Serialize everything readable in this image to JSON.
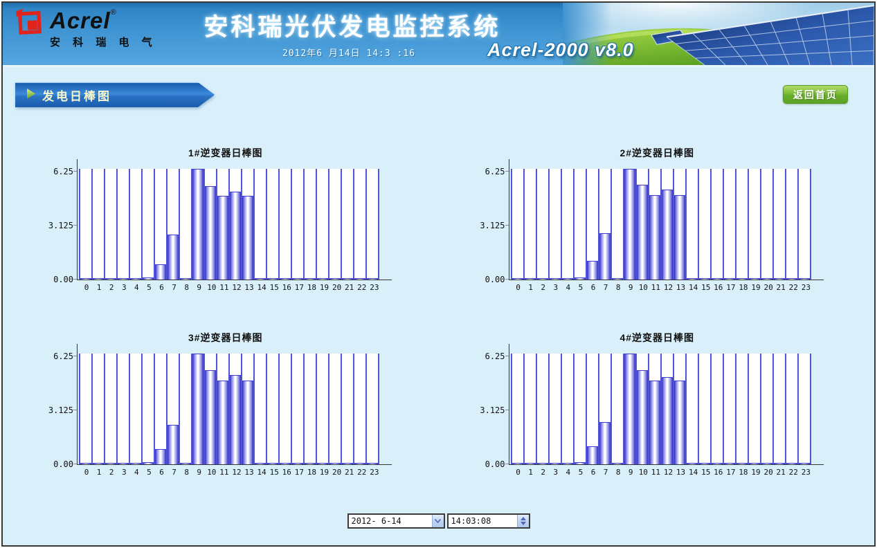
{
  "header": {
    "logo": {
      "brand": "Acrel",
      "registered": "®",
      "subtitle": "安 科 瑞 电 气"
    },
    "title": "安科瑞光伏发电监控系统",
    "datetime": "2012年6 月14日 14:3 :16",
    "version": "Acrel-2000 v8.0"
  },
  "toolbar": {
    "breadcrumb": "发电日棒图",
    "home_button_label": "返回首页"
  },
  "chart_data": [
    {
      "type": "bar",
      "title": "1#逆变器日棒图",
      "categories": [
        "0",
        "1",
        "2",
        "3",
        "4",
        "5",
        "6",
        "7",
        "8",
        "9",
        "10",
        "11",
        "12",
        "13",
        "14",
        "15",
        "16",
        "17",
        "18",
        "19",
        "20",
        "21",
        "22",
        "23"
      ],
      "values": [
        0.05,
        0.05,
        0.05,
        0.05,
        0.06,
        0.12,
        0.9,
        2.6,
        0.06,
        6.4,
        5.4,
        4.85,
        5.1,
        4.85,
        0.06,
        0.05,
        0.05,
        0.05,
        0.05,
        0.05,
        0.05,
        0.05,
        0.05,
        0.05
      ],
      "ytick_labels": [
        "0.00",
        "3.125",
        "6.25"
      ],
      "ytick_values": [
        0,
        3.125,
        6.25
      ],
      "ylim": [
        0,
        6.4
      ],
      "xlabel": "",
      "ylabel": "",
      "grid": "full-height slot divider bars",
      "legend": "none"
    },
    {
      "type": "bar",
      "title": "2#逆变器日棒图",
      "categories": [
        "0",
        "1",
        "2",
        "3",
        "4",
        "5",
        "6",
        "7",
        "8",
        "9",
        "10",
        "11",
        "12",
        "13",
        "14",
        "15",
        "16",
        "17",
        "18",
        "19",
        "20",
        "21",
        "22",
        "23"
      ],
      "values": [
        0.05,
        0.05,
        0.05,
        0.05,
        0.05,
        0.12,
        1.1,
        2.7,
        0.06,
        6.4,
        5.5,
        4.9,
        5.2,
        4.9,
        0.06,
        0.05,
        0.05,
        0.05,
        0.05,
        0.05,
        0.05,
        0.05,
        0.05,
        0.05
      ],
      "ytick_labels": [
        "0.00",
        "3.125",
        "6.25"
      ],
      "ytick_values": [
        0,
        3.125,
        6.25
      ],
      "ylim": [
        0,
        6.4
      ],
      "xlabel": "",
      "ylabel": "",
      "grid": "full-height slot divider bars",
      "legend": "none"
    },
    {
      "type": "bar",
      "title": "3#逆变器日棒图",
      "categories": [
        "0",
        "1",
        "2",
        "3",
        "4",
        "5",
        "6",
        "7",
        "8",
        "9",
        "10",
        "11",
        "12",
        "13",
        "14",
        "15",
        "16",
        "17",
        "18",
        "19",
        "20",
        "21",
        "22",
        "23"
      ],
      "values": [
        0.05,
        0.05,
        0.05,
        0.05,
        0.05,
        0.12,
        0.9,
        2.3,
        0.06,
        6.4,
        5.45,
        4.85,
        5.15,
        4.85,
        0.06,
        0.05,
        0.05,
        0.05,
        0.05,
        0.05,
        0.05,
        0.05,
        0.05,
        0.05
      ],
      "ytick_labels": [
        "0.00",
        "3.125",
        "6.25"
      ],
      "ytick_values": [
        0,
        3.125,
        6.25
      ],
      "ylim": [
        0,
        6.4
      ],
      "xlabel": "",
      "ylabel": "",
      "grid": "full-height slot divider bars",
      "legend": "none"
    },
    {
      "type": "bar",
      "title": "4#逆变器日棒图",
      "categories": [
        "0",
        "1",
        "2",
        "3",
        "4",
        "5",
        "6",
        "7",
        "8",
        "9",
        "10",
        "11",
        "12",
        "13",
        "14",
        "15",
        "16",
        "17",
        "18",
        "19",
        "20",
        "21",
        "22",
        "23"
      ],
      "values": [
        0.05,
        0.05,
        0.05,
        0.05,
        0.05,
        0.12,
        1.05,
        2.45,
        0.06,
        6.4,
        5.45,
        4.85,
        5.05,
        4.85,
        0.06,
        0.05,
        0.05,
        0.05,
        0.05,
        0.05,
        0.05,
        0.05,
        0.05,
        0.05
      ],
      "ytick_labels": [
        "0.00",
        "3.125",
        "6.25"
      ],
      "ytick_values": [
        0,
        3.125,
        6.25
      ],
      "ylim": [
        0,
        6.4
      ],
      "xlabel": "",
      "ylabel": "",
      "grid": "full-height slot divider bars",
      "legend": "none"
    }
  ],
  "footer": {
    "date_value": "2012- 6-14",
    "time_value": "14:03:08"
  },
  "colors": {
    "page_bg": "#d9f0fa",
    "header_blue": "#3f94d2",
    "banner_blue": "#2a72c4",
    "banner_text_yellow": "#f6f6cc",
    "button_green": "#68ad2a",
    "bar_edge_blue": "#2b2bc4",
    "slot_divider_blue": "#5353d6",
    "plot_bg": "#ffffff",
    "logo_red": "#e0241c"
  }
}
